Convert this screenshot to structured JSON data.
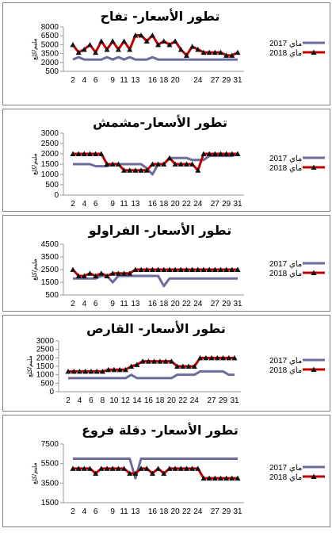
{
  "colors": {
    "y2017": "#6b6b9e",
    "y2018": "#c00000",
    "marker": "#111111",
    "grid": "#9a9a9a"
  },
  "chart_data": [
    {
      "type": "line",
      "title": "تطور الأسعار- تفاح",
      "ylabel": "مليم/كلغ",
      "ylim": [
        500,
        8000
      ],
      "yticks": [
        "8000",
        "6500",
        "5000",
        "3500",
        "2000",
        "500"
      ],
      "x": [
        "2",
        "3",
        "4",
        "5",
        "6",
        "7",
        "8",
        "9",
        "10",
        "11",
        "12",
        "13",
        "14",
        "15",
        "16",
        "17",
        "18",
        "19",
        "20",
        "21",
        "22",
        "23",
        "24",
        "25",
        "26",
        "27",
        "28",
        "29",
        "30",
        "31"
      ],
      "xticks": [
        "2",
        "4",
        "6",
        "9",
        "11",
        "13",
        "16",
        "18",
        "20",
        "24",
        "27",
        "29",
        "31"
      ],
      "series": [
        {
          "name": "ماي 2017",
          "values": [
            2500,
            2900,
            2500,
            2500,
            2500,
            2500,
            2900,
            2500,
            2900,
            2500,
            2900,
            2500,
            2500,
            2500,
            2900,
            2500,
            2500,
            2500,
            2500,
            2500,
            2500,
            2500,
            2500,
            2500,
            2500,
            2500,
            2500,
            2500,
            2500,
            2500
          ]
        },
        {
          "name": "ماي 2018",
          "values": [
            5000,
            3700,
            4200,
            5000,
            3700,
            5600,
            4200,
            5600,
            4200,
            5600,
            4200,
            6600,
            6600,
            5600,
            6600,
            5000,
            5600,
            5000,
            5600,
            4200,
            3200,
            4700,
            4200,
            3700,
            3700,
            3700,
            3700,
            3200,
            3200,
            3700
          ]
        }
      ]
    },
    {
      "type": "line",
      "title": "تطور الأسعار-مشمش",
      "ylabel": "مليم/كلغ",
      "ylim": [
        0,
        3000
      ],
      "yticks": [
        "3000",
        "2500",
        "2000",
        "1500",
        "1000",
        "500",
        "0"
      ],
      "x": [
        "2",
        "3",
        "4",
        "5",
        "6",
        "7",
        "8",
        "9",
        "10",
        "11",
        "12",
        "13",
        "14",
        "15",
        "16",
        "17",
        "18",
        "19",
        "20",
        "21",
        "22",
        "23",
        "24",
        "25",
        "26",
        "27",
        "28",
        "29",
        "30",
        "31"
      ],
      "xticks": [
        "2",
        "4",
        "6",
        "9",
        "11",
        "13",
        "16",
        "18",
        "20",
        "22",
        "24",
        "27",
        "29",
        "31"
      ],
      "series": [
        {
          "name": "ماي 2017",
          "values": [
            1500,
            1500,
            1500,
            1500,
            1400,
            1400,
            1400,
            1500,
            1500,
            1500,
            1500,
            1500,
            1500,
            1300,
            1000,
            1500,
            1500,
            1800,
            1800,
            1800,
            1800,
            1700,
            1700,
            1700,
            1900,
            1900,
            1900,
            1900,
            1900,
            2000
          ]
        },
        {
          "name": "ماي 2018",
          "values": [
            2000,
            2000,
            2000,
            2000,
            2000,
            2000,
            1500,
            1500,
            1500,
            1200,
            1200,
            1200,
            1200,
            1200,
            1500,
            1500,
            1500,
            1800,
            1500,
            1500,
            1500,
            1500,
            1200,
            2000,
            2000,
            2000,
            2000,
            2000,
            2000,
            2000
          ]
        }
      ]
    },
    {
      "type": "line",
      "title": "تطور الأسعار- الفراولو",
      "ylabel": "مليم/كلغ",
      "ylim": [
        500,
        4500
      ],
      "yticks": [
        "4500",
        "3500",
        "2500",
        "1500",
        "500"
      ],
      "x": [
        "2",
        "3",
        "4",
        "5",
        "6",
        "7",
        "8",
        "9",
        "10",
        "11",
        "12",
        "13",
        "14",
        "15",
        "16",
        "17",
        "18",
        "19",
        "20",
        "21",
        "22",
        "23",
        "24",
        "25",
        "26",
        "27",
        "28",
        "29",
        "30",
        "31"
      ],
      "xticks": [
        "2",
        "4",
        "6",
        "9",
        "11",
        "13",
        "16",
        "18",
        "20",
        "22",
        "24",
        "27",
        "29",
        "31"
      ],
      "series": [
        {
          "name": "ماي 2017",
          "values": [
            1800,
            1800,
            1800,
            1800,
            1800,
            2000,
            2000,
            1500,
            2000,
            2000,
            2000,
            2000,
            2000,
            2000,
            2000,
            2000,
            1200,
            1800,
            1800,
            1800,
            1800,
            1800,
            1800,
            1800,
            1800,
            1800,
            1800,
            1800,
            1800,
            1800
          ]
        },
        {
          "name": "ماي 2018",
          "values": [
            2500,
            2000,
            2000,
            2200,
            2000,
            2200,
            2000,
            2200,
            2200,
            2200,
            2200,
            2500,
            2500,
            2500,
            2500,
            2500,
            2500,
            2500,
            2500,
            2500,
            2500,
            2500,
            2500,
            2500,
            2500,
            2500,
            2500,
            2500,
            2500,
            2500
          ]
        }
      ]
    },
    {
      "type": "line",
      "title": "تطور الأسعار- القارص",
      "ylabel": "مليم/كلغ",
      "ylim": [
        0,
        3000
      ],
      "yticks": [
        "3000",
        "2500",
        "2000",
        "1500",
        "1000",
        "500",
        "0"
      ],
      "x": [
        "2",
        "3",
        "4",
        "5",
        "6",
        "7",
        "8",
        "9",
        "10",
        "11",
        "12",
        "13",
        "14",
        "15",
        "16",
        "17",
        "18",
        "19",
        "20",
        "21",
        "22",
        "23",
        "24",
        "25",
        "26",
        "27",
        "28",
        "29",
        "30",
        "31"
      ],
      "xticks": [
        "2",
        "4",
        "6",
        "8",
        "10",
        "12",
        "14",
        "16",
        "18",
        "20",
        "22",
        "24",
        "27",
        "29",
        "31"
      ],
      "series": [
        {
          "name": "ماي 2017",
          "values": [
            800,
            800,
            800,
            800,
            800,
            800,
            800,
            800,
            800,
            800,
            800,
            1000,
            800,
            800,
            800,
            800,
            800,
            800,
            800,
            1000,
            1000,
            1000,
            1000,
            1200,
            1200,
            1200,
            1200,
            1200,
            1000,
            1000
          ]
        },
        {
          "name": "ماي 2018",
          "values": [
            1200,
            1200,
            1200,
            1200,
            1200,
            1200,
            1200,
            1300,
            1300,
            1300,
            1300,
            1500,
            1600,
            1800,
            1800,
            1800,
            1800,
            1800,
            1800,
            1500,
            1500,
            1500,
            1500,
            2000,
            2000,
            2000,
            2000,
            2000,
            2000,
            2000
          ]
        }
      ]
    },
    {
      "type": "line",
      "title": "تطور الأسعار- دقلة فروع",
      "ylabel": "مليم/كلغ",
      "ylim": [
        1500,
        7500
      ],
      "yticks": [
        "7500",
        "5500",
        "3500",
        "1500"
      ],
      "x": [
        "2",
        "3",
        "4",
        "5",
        "6",
        "7",
        "8",
        "9",
        "10",
        "11",
        "12",
        "13",
        "14",
        "15",
        "16",
        "17",
        "18",
        "19",
        "20",
        "21",
        "22",
        "23",
        "24",
        "25",
        "26",
        "27",
        "28",
        "29",
        "30",
        "31"
      ],
      "xticks": [
        "2",
        "4",
        "6",
        "9",
        "11",
        "13",
        "16",
        "18",
        "20",
        "22",
        "24",
        "27",
        "29",
        "31"
      ],
      "series": [
        {
          "name": "ماي 2017",
          "values": [
            6000,
            6000,
            6000,
            6000,
            6000,
            6000,
            6000,
            6000,
            6000,
            6000,
            6000,
            4000,
            6000,
            6000,
            6000,
            6000,
            6000,
            6000,
            6000,
            6000,
            6000,
            6000,
            6000,
            6000,
            6000,
            6000,
            6000,
            6000,
            6000,
            6000
          ]
        },
        {
          "name": "ماي 2018",
          "values": [
            5000,
            5000,
            5000,
            5000,
            4500,
            5000,
            5000,
            5000,
            5000,
            5000,
            4500,
            4500,
            5000,
            5000,
            4500,
            5000,
            4500,
            5000,
            5000,
            5000,
            5000,
            5000,
            5000,
            4000,
            4000,
            4000,
            4000,
            4000,
            4000,
            4000
          ]
        }
      ]
    }
  ]
}
